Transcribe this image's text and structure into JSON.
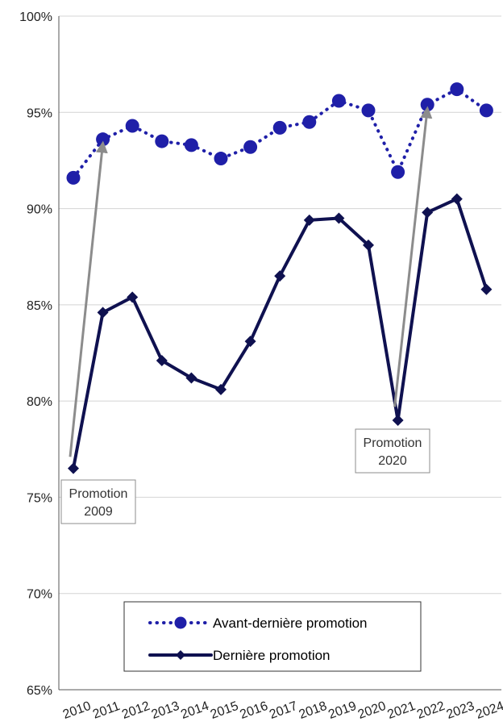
{
  "chart_data": {
    "type": "line",
    "x": [
      "2010",
      "2011",
      "2012",
      "2013",
      "2014",
      "2015",
      "2016",
      "2017",
      "2018",
      "2019",
      "2020",
      "2021",
      "2022",
      "2023",
      "2024"
    ],
    "ylim": [
      65,
      100
    ],
    "yticks": [
      "65%",
      "70%",
      "75%",
      "80%",
      "85%",
      "90%",
      "95%",
      "100%"
    ],
    "grid": "horizontal",
    "legend": "bottom-center",
    "series": [
      {
        "name": "Avant-dernière promotion",
        "style": "dotted",
        "marker": "circle",
        "color": "#1f1fa8",
        "values": [
          91.6,
          93.6,
          94.3,
          93.5,
          93.3,
          92.6,
          93.2,
          94.2,
          94.5,
          95.6,
          95.1,
          91.9,
          95.4,
          96.2,
          95.1
        ]
      },
      {
        "name": "Dernière promotion",
        "style": "solid",
        "marker": "diamond",
        "color": "#0f1150",
        "values": [
          76.5,
          84.6,
          85.4,
          82.1,
          81.2,
          80.6,
          83.1,
          86.5,
          89.4,
          89.5,
          88.1,
          79.0,
          89.8,
          90.5,
          85.8
        ]
      }
    ],
    "annotations": [
      {
        "line1": "Promotion",
        "line2": "2009",
        "from": {
          "x": "2010",
          "y": 77.1
        },
        "to": {
          "x": "2011",
          "y": 93.4
        }
      },
      {
        "line1": "Promotion",
        "line2": "2020",
        "from": {
          "x": "2021",
          "y": 79.7
        },
        "to": {
          "x": "2022",
          "y": 95.2
        }
      }
    ]
  },
  "colors": {
    "arrow": "#8c8c8c",
    "grid": "#d4d4d4",
    "axis": "#555555"
  }
}
